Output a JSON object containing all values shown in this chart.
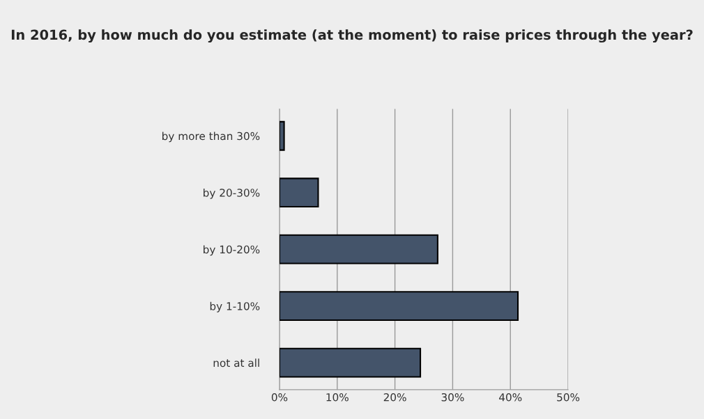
{
  "chart_data": {
    "type": "bar",
    "orientation": "horizontal",
    "title": "In 2016, by how much do you estimate (at the moment) to raise prices through the year?",
    "categories": [
      "by more than 30%",
      "by 20-30%",
      "by 10-20%",
      "by 1-10%",
      "not at all"
    ],
    "values": [
      0.8,
      6.7,
      27.4,
      41.3,
      24.4
    ],
    "color": "#44546a",
    "xlim": [
      0,
      50
    ],
    "xticks": [
      {
        "value": 0,
        "label": "0%"
      },
      {
        "value": 10,
        "label": "10%"
      },
      {
        "value": 20,
        "label": "20%"
      },
      {
        "value": 30,
        "label": "30%"
      },
      {
        "value": 40,
        "label": "40%"
      },
      {
        "value": 50,
        "label": "50%"
      }
    ],
    "grid": "x",
    "legend": false
  }
}
